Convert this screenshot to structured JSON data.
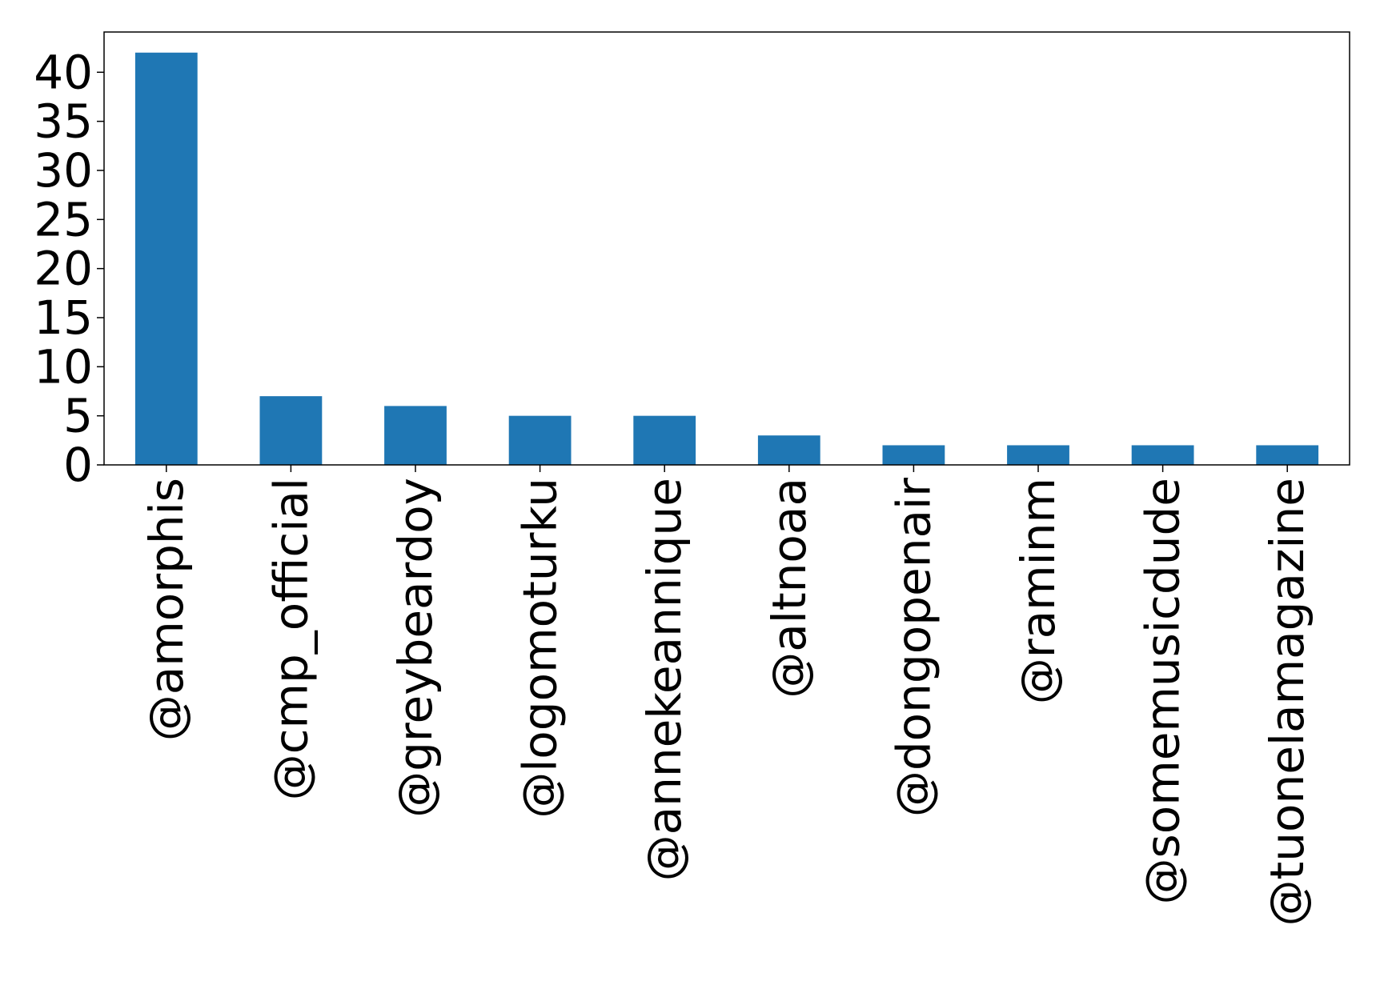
{
  "chart_data": {
    "type": "bar",
    "title": "",
    "xlabel": "",
    "ylabel": "",
    "categories": [
      "@amorphis",
      "@cmp_official",
      "@greybeardoy",
      "@logomoturku",
      "@annekeannique",
      "@altnoaa",
      "@dongopenair",
      "@raminm",
      "@somemusicdude",
      "@tuonelamagazine"
    ],
    "values": [
      42,
      7,
      6,
      5,
      5,
      3,
      2,
      2,
      2,
      2
    ],
    "ylim": [
      0,
      44.1
    ],
    "yticks": [
      0,
      5,
      10,
      15,
      20,
      25,
      30,
      35,
      40
    ],
    "ytick_labels": [
      "0",
      "5",
      "10",
      "15",
      "20",
      "25",
      "30",
      "35",
      "40"
    ],
    "grid": false,
    "colors": {
      "bar": "#1f77b4",
      "axis": "#000000",
      "background": "#ffffff"
    }
  }
}
